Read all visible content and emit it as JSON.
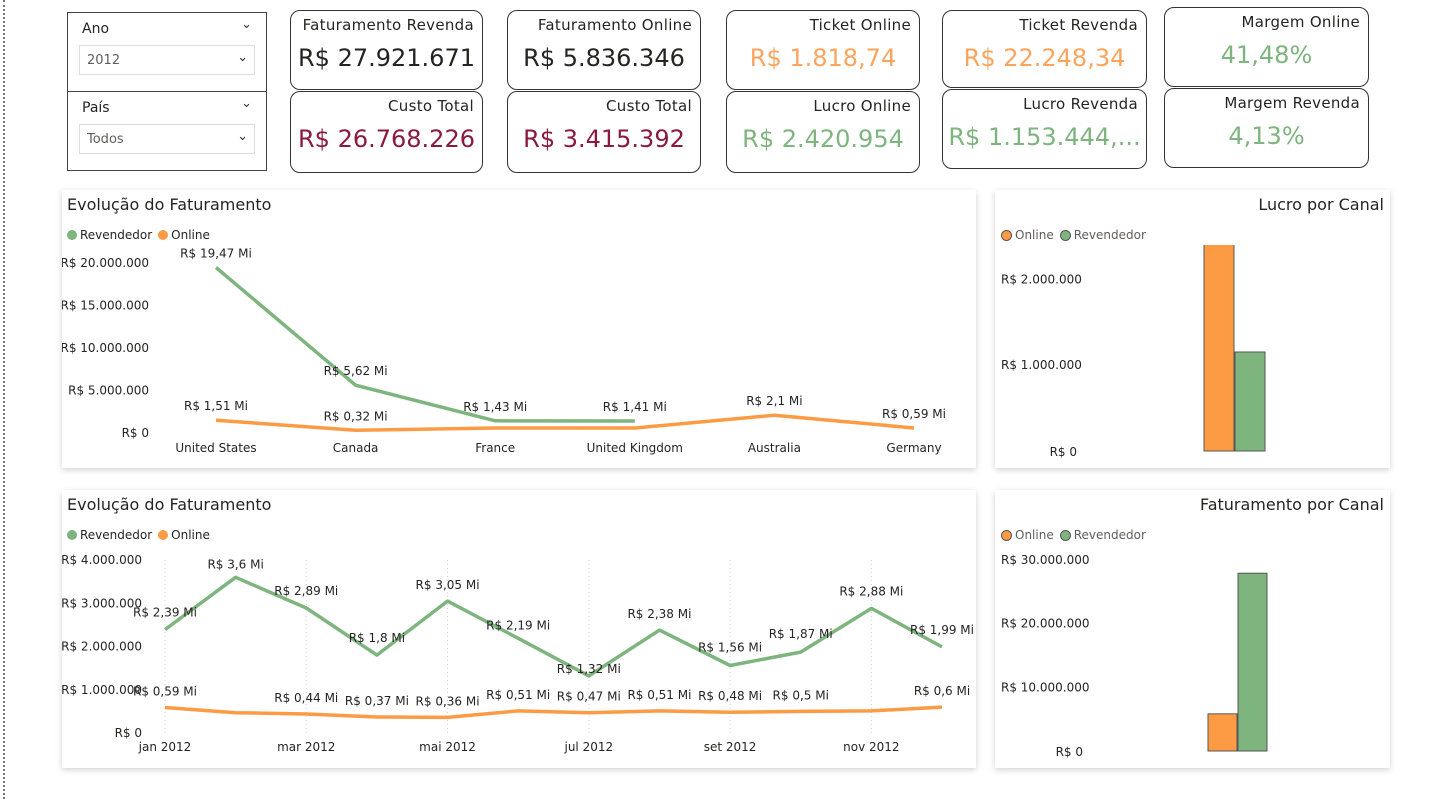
{
  "slicers": {
    "ano": {
      "title": "Ano",
      "value": "2012"
    },
    "pais": {
      "title": "País",
      "value": "Todos"
    }
  },
  "cards": {
    "fat_revenda": {
      "label": "Faturamento Revenda",
      "value": "R$ 27.921.671"
    },
    "custo_total_revenda": {
      "label": "Custo Total",
      "value": "R$ 26.768.226"
    },
    "fat_online": {
      "label": "Faturamento Online",
      "value": "R$ 5.836.346"
    },
    "custo_total_online": {
      "label": "Custo Total",
      "value": "R$ 3.415.392"
    },
    "ticket_online": {
      "label": "Ticket Online",
      "value": "R$ 1.818,74"
    },
    "lucro_online": {
      "label": "Lucro Online",
      "value": "R$ 2.420.954"
    },
    "ticket_revenda": {
      "label": "Ticket Revenda",
      "value": "R$ 22.248,34"
    },
    "lucro_revenda": {
      "label": "Lucro Revenda",
      "value": "R$ 1.153.444,..."
    },
    "margem_online": {
      "label": "Margem Online",
      "value": "41,48%"
    },
    "margem_revenda": {
      "label": "Margem Revenda",
      "value": "4,13%"
    }
  },
  "colors": {
    "revendedor": "#7eb47e",
    "online": "#fd9b45",
    "dark_red": "#8b1a3f",
    "light_orange": "#fca45c"
  },
  "chart_data": [
    {
      "type": "line",
      "title": "Evolução do Faturamento",
      "legend": [
        {
          "name": "Revendedor",
          "color": "#7eb47e"
        },
        {
          "name": "Online",
          "color": "#fd9b45"
        }
      ],
      "legend_position": "top-left",
      "categories": [
        "United States",
        "Canada",
        "France",
        "United Kingdom",
        "Australia",
        "Germany"
      ],
      "yticks": [
        "R$ 0",
        "R$ 5.000.000",
        "R$ 10.000.000",
        "R$ 15.000.000",
        "R$ 20.000.000"
      ],
      "ylim": [
        0,
        20000000
      ],
      "series": [
        {
          "name": "Revendedor",
          "values": [
            19470000,
            5620000,
            1430000,
            1410000,
            null,
            null
          ],
          "labels": [
            "R$ 19,47 Mi",
            "R$ 5,62 Mi",
            "R$ 1,43 Mi",
            "R$ 1,41 Mi",
            "",
            ""
          ]
        },
        {
          "name": "Online",
          "values": [
            1510000,
            320000,
            590000,
            590000,
            2100000,
            590000
          ],
          "labels": [
            "R$ 1,51 Mi",
            "R$ 0,32 Mi",
            "",
            "",
            "R$ 2,1 Mi",
            "R$ 0,59 Mi"
          ]
        }
      ]
    },
    {
      "type": "bar",
      "title": "Lucro por Canal",
      "legend": [
        {
          "name": "Online",
          "color": "#fd9b45"
        },
        {
          "name": "Revendedor",
          "color": "#7eb47e"
        }
      ],
      "legend_position": "top-left",
      "yticks": [
        "R$ 0",
        "R$ 1.000.000",
        "R$ 2.000.000"
      ],
      "ylim": [
        0,
        2400000
      ],
      "series": [
        {
          "name": "Online",
          "values": [
            2420954
          ]
        },
        {
          "name": "Revendedor",
          "values": [
            1153444
          ]
        }
      ]
    },
    {
      "type": "line",
      "title": "Evolução do Faturamento",
      "legend": [
        {
          "name": "Revendedor",
          "color": "#7eb47e"
        },
        {
          "name": "Online",
          "color": "#fd9b45"
        }
      ],
      "legend_position": "top-left",
      "xticks": [
        "jan 2012",
        "mar 2012",
        "mai 2012",
        "jul 2012",
        "set 2012",
        "nov 2012"
      ],
      "x": [
        "2012-01",
        "2012-02",
        "2012-03",
        "2012-04",
        "2012-05",
        "2012-06",
        "2012-07",
        "2012-08",
        "2012-09",
        "2012-10",
        "2012-11",
        "2012-12"
      ],
      "yticks": [
        "R$ 0",
        "R$ 1.000.000",
        "R$ 2.000.000",
        "R$ 3.000.000",
        "R$ 4.000.000"
      ],
      "ylim": [
        0,
        4000000
      ],
      "series": [
        {
          "name": "Revendedor",
          "values": [
            2390000,
            3600000,
            2890000,
            1800000,
            3050000,
            2190000,
            1320000,
            2380000,
            1560000,
            1870000,
            2880000,
            1990000
          ],
          "labels": [
            "R$ 2,39 Mi",
            "R$ 3,6 Mi",
            "R$ 2,89 Mi",
            "R$ 1,8 Mi",
            "R$ 3,05 Mi",
            "R$ 2,19 Mi",
            "R$ 1,32 Mi",
            "R$ 2,38 Mi",
            "R$ 1,56 Mi",
            "R$ 1,87 Mi",
            "R$ 2,88 Mi",
            "R$ 1,99 Mi"
          ]
        },
        {
          "name": "Online",
          "values": [
            590000,
            470000,
            440000,
            370000,
            360000,
            510000,
            470000,
            510000,
            480000,
            500000,
            510000,
            600000
          ],
          "labels": [
            "R$ 0,59 Mi",
            "",
            "R$ 0,44 Mi",
            "R$ 0,37 Mi",
            "R$ 0,36 Mi",
            "R$ 0,51 Mi",
            "R$ 0,47 Mi",
            "R$ 0,51 Mi",
            "R$ 0,48 Mi",
            "R$ 0,5 Mi",
            "",
            "R$ 0,6 Mi"
          ]
        }
      ]
    },
    {
      "type": "bar",
      "title": "Faturamento por Canal",
      "legend": [
        {
          "name": "Online",
          "color": "#fd9b45"
        },
        {
          "name": "Revendedor",
          "color": "#7eb47e"
        }
      ],
      "legend_position": "top-left",
      "yticks": [
        "R$ 0",
        "R$ 10.000.000",
        "R$ 20.000.000",
        "R$ 30.000.000"
      ],
      "ylim": [
        0,
        30000000
      ],
      "series": [
        {
          "name": "Online",
          "values": [
            5836346
          ]
        },
        {
          "name": "Revendedor",
          "values": [
            27921671
          ]
        }
      ]
    }
  ]
}
